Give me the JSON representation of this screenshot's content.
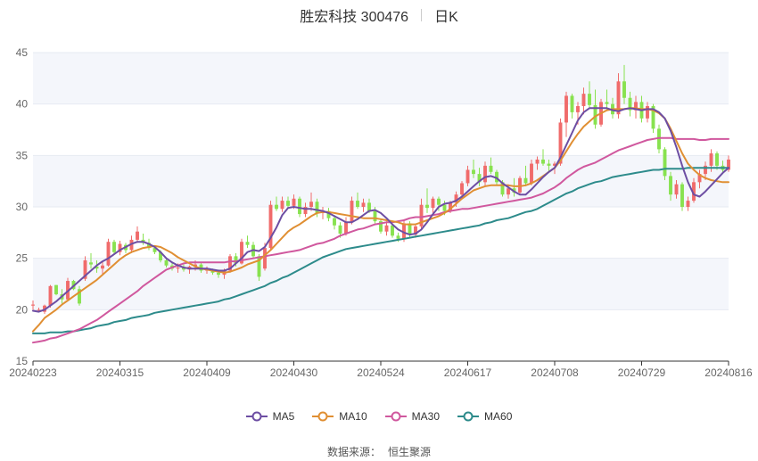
{
  "title": {
    "name": "胜宏科技 300476",
    "period": "日K"
  },
  "source": {
    "label": "数据来源：",
    "value": "恒生聚源"
  },
  "colors": {
    "up": "#f06b6b",
    "down": "#88e24f",
    "ma5": "#6d4ea3",
    "ma10": "#e08f33",
    "ma30": "#d0589e",
    "ma60": "#2d8b8b",
    "grid": "#e6eaf2",
    "band": "#f4f6fb",
    "axis": "#666666"
  },
  "chart_data": {
    "type": "candlestick",
    "ylim": [
      15,
      45
    ],
    "yticks": [
      15,
      20,
      25,
      30,
      35,
      40,
      45
    ],
    "xtick_labels": [
      "20240223",
      "20240315",
      "20240409",
      "20240430",
      "20240524",
      "20240617",
      "20240708",
      "20240729",
      "20240816"
    ],
    "xtick_index": [
      0,
      15,
      30,
      45,
      60,
      75,
      90,
      105,
      120
    ],
    "legend": [
      "MA5",
      "MA10",
      "MA30",
      "MA60"
    ],
    "n_days": 121,
    "candles_ohlc": [
      [
        20.4,
        20.9,
        20.0,
        20.5
      ],
      [
        20.0,
        20.2,
        19.8,
        20.0
      ],
      [
        19.8,
        20.5,
        19.6,
        20.4
      ],
      [
        20.4,
        22.4,
        20.2,
        22.3
      ],
      [
        22.4,
        22.4,
        21.4,
        21.5
      ],
      [
        21.5,
        22.0,
        20.6,
        21.0
      ],
      [
        21.0,
        23.1,
        20.9,
        22.8
      ],
      [
        22.8,
        22.9,
        21.9,
        22.0
      ],
      [
        22.0,
        22.3,
        20.4,
        20.6
      ],
      [
        23.0,
        25.2,
        22.8,
        24.8
      ],
      [
        24.6,
        25.5,
        24.0,
        24.4
      ],
      [
        24.2,
        24.8,
        23.6,
        24.0
      ],
      [
        24.0,
        24.7,
        23.5,
        24.3
      ],
      [
        24.3,
        26.9,
        24.2,
        26.6
      ],
      [
        26.6,
        26.8,
        25.4,
        25.6
      ],
      [
        25.6,
        26.7,
        25.3,
        26.4
      ],
      [
        26.3,
        26.5,
        25.5,
        25.8
      ],
      [
        25.8,
        27.2,
        25.5,
        26.8
      ],
      [
        26.8,
        28.1,
        26.5,
        27.6
      ],
      [
        26.8,
        27.4,
        26.3,
        26.5
      ],
      [
        26.5,
        26.9,
        25.8,
        26.0
      ],
      [
        26.0,
        26.2,
        25.4,
        25.6
      ],
      [
        25.6,
        25.8,
        24.6,
        24.8
      ],
      [
        24.8,
        25.0,
        24.1,
        24.3
      ],
      [
        24.3,
        24.6,
        23.8,
        24.0
      ],
      [
        24.0,
        24.5,
        23.6,
        24.1
      ],
      [
        24.1,
        24.4,
        23.7,
        23.9
      ],
      [
        23.9,
        24.3,
        23.5,
        24.2
      ],
      [
        24.2,
        24.8,
        23.8,
        24.4
      ],
      [
        24.4,
        24.6,
        23.6,
        23.8
      ],
      [
        23.8,
        24.2,
        23.5,
        23.9
      ],
      [
        23.9,
        24.0,
        23.4,
        23.6
      ],
      [
        23.6,
        23.9,
        23.1,
        23.4
      ],
      [
        23.4,
        24.0,
        23.0,
        23.8
      ],
      [
        23.8,
        25.4,
        23.6,
        25.2
      ],
      [
        25.2,
        25.5,
        24.2,
        24.5
      ],
      [
        24.5,
        26.9,
        24.4,
        26.6
      ],
      [
        26.6,
        27.2,
        26.0,
        26.3
      ],
      [
        26.3,
        26.6,
        25.0,
        25.2
      ],
      [
        25.2,
        25.4,
        22.8,
        23.2
      ],
      [
        24.0,
        26.5,
        23.8,
        26.0
      ],
      [
        26.0,
        30.6,
        25.8,
        30.2
      ],
      [
        30.2,
        31.0,
        29.6,
        29.8
      ],
      [
        29.8,
        31.0,
        29.5,
        30.6
      ],
      [
        30.6,
        31.0,
        29.9,
        30.1
      ],
      [
        30.1,
        31.2,
        29.8,
        30.8
      ],
      [
        30.8,
        31.0,
        29.0,
        29.3
      ],
      [
        29.3,
        30.4,
        29.0,
        30.0
      ],
      [
        30.0,
        31.4,
        29.6,
        30.5
      ],
      [
        30.5,
        30.8,
        29.0,
        29.4
      ],
      [
        29.4,
        30.0,
        28.8,
        29.6
      ],
      [
        29.6,
        29.9,
        28.6,
        28.9
      ],
      [
        28.9,
        29.2,
        27.8,
        28.2
      ],
      [
        28.2,
        28.5,
        27.0,
        27.4
      ],
      [
        27.4,
        29.0,
        27.2,
        28.5
      ],
      [
        28.5,
        31.0,
        28.3,
        30.6
      ],
      [
        30.6,
        31.4,
        29.8,
        30.0
      ],
      [
        30.0,
        30.8,
        29.5,
        30.4
      ],
      [
        30.4,
        30.8,
        29.4,
        29.6
      ],
      [
        29.6,
        30.0,
        28.4,
        28.6
      ],
      [
        28.6,
        28.8,
        27.4,
        27.6
      ],
      [
        27.6,
        28.6,
        27.2,
        28.2
      ],
      [
        28.2,
        28.4,
        27.0,
        27.2
      ],
      [
        27.2,
        27.5,
        26.6,
        26.9
      ],
      [
        26.9,
        28.8,
        26.6,
        28.4
      ],
      [
        28.4,
        28.6,
        27.0,
        27.3
      ],
      [
        27.3,
        28.4,
        27.0,
        28.1
      ],
      [
        28.1,
        30.8,
        27.9,
        30.2
      ],
      [
        30.2,
        31.8,
        29.4,
        29.9
      ],
      [
        29.9,
        31.0,
        29.4,
        30.8
      ],
      [
        30.8,
        31.0,
        29.6,
        30.2
      ],
      [
        30.2,
        30.6,
        29.2,
        29.6
      ],
      [
        29.6,
        30.6,
        29.4,
        30.4
      ],
      [
        30.4,
        31.5,
        30.0,
        31.2
      ],
      [
        31.2,
        32.5,
        31.0,
        32.3
      ],
      [
        32.3,
        34.0,
        32.0,
        33.6
      ],
      [
        33.6,
        34.6,
        32.8,
        33.2
      ],
      [
        33.2,
        33.8,
        32.0,
        32.4
      ],
      [
        32.4,
        34.4,
        32.0,
        34.0
      ],
      [
        34.0,
        34.8,
        33.2,
        33.4
      ],
      [
        33.4,
        33.6,
        32.1,
        32.4
      ],
      [
        32.4,
        32.6,
        31.0,
        31.2
      ],
      [
        31.2,
        32.2,
        30.8,
        31.8
      ],
      [
        31.8,
        32.8,
        31.0,
        31.4
      ],
      [
        31.4,
        33.0,
        31.2,
        32.8
      ],
      [
        32.8,
        34.0,
        32.0,
        32.3
      ],
      [
        32.3,
        34.6,
        32.1,
        34.2
      ],
      [
        34.2,
        34.9,
        33.6,
        34.6
      ],
      [
        34.6,
        35.6,
        34.0,
        34.2
      ],
      [
        34.2,
        34.6,
        33.4,
        34.0
      ],
      [
        34.0,
        34.4,
        33.2,
        34.2
      ],
      [
        34.2,
        38.6,
        34.0,
        38.2
      ],
      [
        38.2,
        41.2,
        36.8,
        40.8
      ],
      [
        40.8,
        41.0,
        38.6,
        39.2
      ],
      [
        39.2,
        40.2,
        38.0,
        39.8
      ],
      [
        39.8,
        41.6,
        39.0,
        41.0
      ],
      [
        41.0,
        42.2,
        39.6,
        39.9
      ],
      [
        39.9,
        41.4,
        37.6,
        38.0
      ],
      [
        38.0,
        40.5,
        37.8,
        40.2
      ],
      [
        40.2,
        41.4,
        39.4,
        40.0
      ],
      [
        40.0,
        40.6,
        38.6,
        39.0
      ],
      [
        39.0,
        43.0,
        38.6,
        42.2
      ],
      [
        42.2,
        43.8,
        40.0,
        40.6
      ],
      [
        40.6,
        41.2,
        38.8,
        39.4
      ],
      [
        39.4,
        40.8,
        38.6,
        40.2
      ],
      [
        40.2,
        40.8,
        38.2,
        38.6
      ],
      [
        38.6,
        40.2,
        38.2,
        39.8
      ],
      [
        39.8,
        40.0,
        37.2,
        37.6
      ],
      [
        37.6,
        38.0,
        35.2,
        35.6
      ],
      [
        35.6,
        35.8,
        32.6,
        33.0
      ],
      [
        33.0,
        33.4,
        30.6,
        31.2
      ],
      [
        31.2,
        32.6,
        30.8,
        32.2
      ],
      [
        32.2,
        32.4,
        29.6,
        30.0
      ],
      [
        30.0,
        31.0,
        29.6,
        30.6
      ],
      [
        30.6,
        32.8,
        30.4,
        32.4
      ],
      [
        32.4,
        33.6,
        31.8,
        33.2
      ],
      [
        33.2,
        34.4,
        32.6,
        34.0
      ],
      [
        34.0,
        35.6,
        33.4,
        35.2
      ],
      [
        35.2,
        35.4,
        33.6,
        34.0
      ],
      [
        34.0,
        34.5,
        33.2,
        33.6
      ],
      [
        33.6,
        35.0,
        33.4,
        34.6
      ]
    ],
    "ma5": [
      19.9,
      19.8,
      20.0,
      20.4,
      20.8,
      21.3,
      21.8,
      22.3,
      22.8,
      23.3,
      23.8,
      24.3,
      24.7,
      25.0,
      25.4,
      25.8,
      26.1,
      26.4,
      26.6,
      26.6,
      26.4,
      26.1,
      25.6,
      25.0,
      24.6,
      24.3,
      24.1,
      24.0,
      24.0,
      24.0,
      24.0,
      23.9,
      23.8,
      23.8,
      24.0,
      24.5,
      25.0,
      25.6,
      25.8,
      25.7,
      26.1,
      27.0,
      28.0,
      29.2,
      29.9,
      30.0,
      29.9,
      29.8,
      29.8,
      29.7,
      29.6,
      29.4,
      29.1,
      28.8,
      28.5,
      28.5,
      28.8,
      29.2,
      29.6,
      29.7,
      29.4,
      28.9,
      28.3,
      27.8,
      27.5,
      27.3,
      27.4,
      27.8,
      28.5,
      29.3,
      30.0,
      30.3,
      30.4,
      30.6,
      31.0,
      31.5,
      32.0,
      32.5,
      32.9,
      33.0,
      32.8,
      32.3,
      31.9,
      31.5,
      31.2,
      31.2,
      31.7,
      32.3,
      32.9,
      33.4,
      33.8,
      34.8,
      36.0,
      37.2,
      38.4,
      39.2,
      39.6,
      39.6,
      39.6,
      39.6,
      39.4,
      39.3,
      39.5,
      39.6,
      39.5,
      39.4,
      39.5,
      39.5,
      39.2,
      38.6,
      37.4,
      35.8,
      34.0,
      32.4,
      31.2,
      31.0,
      31.5,
      32.1,
      32.7,
      33.3,
      33.8
    ],
    "ma10": [
      17.9,
      18.5,
      19.2,
      19.6,
      20.0,
      20.5,
      20.9,
      21.3,
      21.7,
      22.1,
      22.5,
      22.9,
      23.4,
      23.9,
      24.4,
      24.9,
      25.3,
      25.6,
      25.8,
      26.0,
      26.1,
      26.2,
      26.1,
      25.8,
      25.5,
      25.1,
      24.8,
      24.5,
      24.2,
      24.0,
      23.9,
      23.8,
      23.7,
      23.6,
      23.7,
      23.9,
      24.1,
      24.4,
      24.6,
      24.8,
      25.3,
      25.8,
      26.4,
      27.0,
      27.6,
      28.0,
      28.3,
      28.7,
      29.1,
      29.4,
      29.5,
      29.5,
      29.4,
      29.3,
      29.2,
      29.1,
      29.0,
      28.9,
      28.9,
      28.9,
      28.8,
      28.7,
      28.6,
      28.5,
      28.3,
      28.3,
      28.3,
      28.5,
      28.7,
      28.9,
      29.1,
      29.4,
      29.8,
      30.3,
      30.8,
      31.2,
      31.6,
      31.8,
      32.0,
      32.1,
      32.1,
      32.1,
      32.1,
      32.0,
      32.0,
      32.1,
      32.3,
      32.6,
      33.0,
      33.4,
      33.8,
      34.5,
      35.4,
      36.3,
      37.1,
      37.8,
      38.3,
      38.8,
      39.1,
      39.4,
      39.5,
      39.5,
      39.5,
      39.6,
      39.6,
      39.5,
      39.5,
      39.4,
      39.1,
      38.6,
      37.6,
      36.4,
      35.2,
      34.2,
      33.6,
      33.1,
      32.8,
      32.6,
      32.5,
      32.4,
      32.4
    ],
    "ma30": [
      16.8,
      16.9,
      17.0,
      17.2,
      17.3,
      17.5,
      17.7,
      17.9,
      18.1,
      18.4,
      18.7,
      19.0,
      19.4,
      19.8,
      20.2,
      20.6,
      21.0,
      21.4,
      21.8,
      22.3,
      22.7,
      23.1,
      23.5,
      23.9,
      24.1,
      24.3,
      24.5,
      24.6,
      24.6,
      24.6,
      24.6,
      24.6,
      24.6,
      24.6,
      24.7,
      24.7,
      24.8,
      24.9,
      25.0,
      25.1,
      25.2,
      25.3,
      25.4,
      25.5,
      25.6,
      25.7,
      25.8,
      26.0,
      26.2,
      26.4,
      26.5,
      26.7,
      26.9,
      27.2,
      27.4,
      27.6,
      27.8,
      27.9,
      28.1,
      28.3,
      28.4,
      28.5,
      28.5,
      28.6,
      28.7,
      28.9,
      29.0,
      29.0,
      29.1,
      29.2,
      29.3,
      29.5,
      29.6,
      29.7,
      29.8,
      29.8,
      29.9,
      30.0,
      30.1,
      30.2,
      30.3,
      30.4,
      30.5,
      30.6,
      30.7,
      30.8,
      30.9,
      31.1,
      31.3,
      31.6,
      31.9,
      32.3,
      32.8,
      33.2,
      33.6,
      33.9,
      34.1,
      34.3,
      34.6,
      34.9,
      35.2,
      35.5,
      35.7,
      35.9,
      36.1,
      36.3,
      36.5,
      36.6,
      36.7,
      36.7,
      36.7,
      36.6,
      36.6,
      36.6,
      36.6,
      36.5,
      36.5,
      36.6,
      36.6,
      36.6,
      36.6
    ],
    "ma60": [
      17.7,
      17.7,
      17.7,
      17.8,
      17.8,
      17.8,
      17.9,
      17.9,
      18.0,
      18.1,
      18.2,
      18.4,
      18.5,
      18.6,
      18.8,
      18.9,
      19.0,
      19.2,
      19.3,
      19.4,
      19.5,
      19.7,
      19.8,
      19.9,
      20.0,
      20.1,
      20.2,
      20.3,
      20.4,
      20.5,
      20.6,
      20.7,
      20.8,
      21.0,
      21.1,
      21.3,
      21.5,
      21.7,
      21.9,
      22.1,
      22.3,
      22.6,
      22.8,
      23.1,
      23.3,
      23.6,
      23.9,
      24.2,
      24.5,
      24.8,
      25.1,
      25.3,
      25.5,
      25.7,
      25.9,
      26.0,
      26.1,
      26.2,
      26.3,
      26.4,
      26.5,
      26.6,
      26.7,
      26.8,
      26.9,
      27.0,
      27.1,
      27.2,
      27.3,
      27.4,
      27.5,
      27.6,
      27.7,
      27.8,
      27.9,
      28.0,
      28.1,
      28.2,
      28.4,
      28.5,
      28.7,
      28.8,
      28.9,
      29.1,
      29.3,
      29.5,
      29.6,
      29.8,
      30.1,
      30.4,
      30.7,
      31.0,
      31.3,
      31.5,
      31.8,
      32.0,
      32.2,
      32.4,
      32.5,
      32.7,
      32.9,
      33.0,
      33.1,
      33.2,
      33.3,
      33.4,
      33.5,
      33.6,
      33.6,
      33.7,
      33.7,
      33.7,
      33.7,
      33.8,
      33.8,
      33.8,
      33.8,
      33.8,
      33.8,
      33.8,
      33.8
    ]
  }
}
